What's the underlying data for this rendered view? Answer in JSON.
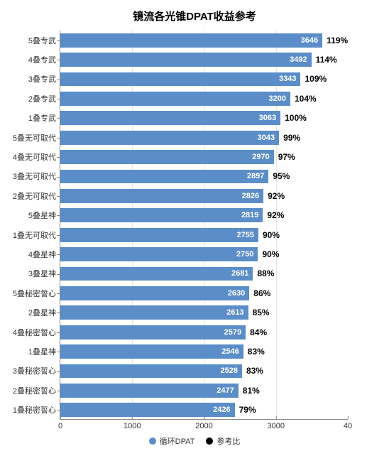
{
  "chart": {
    "type": "bar-horizontal",
    "title": "镜流各光锥DPAT收益参考",
    "title_fontsize": 15,
    "background_color": "#ffffff",
    "bar_color": "#5b8ec8",
    "value_text_color": "#ffffff",
    "pct_text_color": "#000000",
    "axis_color": "#888888",
    "grid_color": "#e5e5e5",
    "x_axis": {
      "min": 0,
      "max": 4000,
      "ticks": [
        0,
        1000,
        2000,
        3000
      ],
      "tick_labels": [
        "0",
        "1000",
        "2000",
        "3000"
      ],
      "right_label": "40",
      "tick_fontsize": 11
    },
    "y_label_fontsize": 11,
    "bar_value_fontsize": 11,
    "pct_fontsize": 12,
    "legend": {
      "items": [
        {
          "label": "循环DPAT",
          "color": "#5b8ec8"
        },
        {
          "label": "参考比",
          "color": "#000000"
        }
      ],
      "fontsize": 11
    },
    "categories": [
      {
        "label": "5叠专武",
        "value": 3646,
        "pct": "119%"
      },
      {
        "label": "4叠专武",
        "value": 3492,
        "pct": "114%"
      },
      {
        "label": "3叠专武",
        "value": 3343,
        "pct": "109%"
      },
      {
        "label": "2叠专武",
        "value": 3200,
        "pct": "104%"
      },
      {
        "label": "1叠专武",
        "value": 3063,
        "pct": "100%"
      },
      {
        "label": "5叠无可取代",
        "value": 3043,
        "pct": "99%"
      },
      {
        "label": "4叠无可取代",
        "value": 2970,
        "pct": "97%"
      },
      {
        "label": "3叠无可取代",
        "value": 2897,
        "pct": "95%"
      },
      {
        "label": "2叠无可取代",
        "value": 2826,
        "pct": "92%"
      },
      {
        "label": "5叠星神",
        "value": 2819,
        "pct": "92%"
      },
      {
        "label": "1叠无可取代",
        "value": 2755,
        "pct": "90%"
      },
      {
        "label": "4叠星神",
        "value": 2750,
        "pct": "90%"
      },
      {
        "label": "3叠星神",
        "value": 2681,
        "pct": "88%"
      },
      {
        "label": "5叠秘密誓心",
        "value": 2630,
        "pct": "86%"
      },
      {
        "label": "2叠星神",
        "value": 2613,
        "pct": "85%"
      },
      {
        "label": "4叠秘密誓心",
        "value": 2579,
        "pct": "84%"
      },
      {
        "label": "1叠星神",
        "value": 2546,
        "pct": "83%"
      },
      {
        "label": "3叠秘密誓心",
        "value": 2528,
        "pct": "83%"
      },
      {
        "label": "2叠秘密誓心",
        "value": 2477,
        "pct": "81%"
      },
      {
        "label": "1叠秘密誓心",
        "value": 2426,
        "pct": "79%"
      }
    ]
  }
}
